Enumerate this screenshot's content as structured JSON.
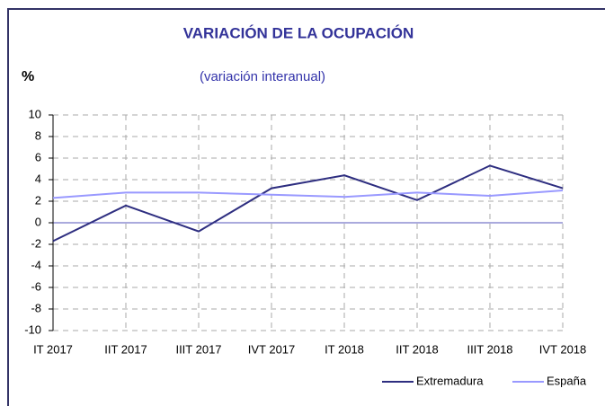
{
  "chart_data": {
    "type": "line",
    "title": "VARIACIÓN DE LA OCUPACIÓN",
    "subtitle": "(variación interanual)",
    "y_label": "%",
    "categories": [
      "IT 2017",
      "IIT 2017",
      "IIIT 2017",
      "IVT 2017",
      "IT 2018",
      "IIT 2018",
      "IIIT 2018",
      "IVT 2018"
    ],
    "series": [
      {
        "name": "Extremadura",
        "color": "#2e2e80",
        "values": [
          -1.7,
          1.6,
          -0.8,
          3.2,
          4.4,
          2.1,
          5.3,
          3.2
        ]
      },
      {
        "name": "España",
        "color": "#9999ff",
        "values": [
          2.3,
          2.8,
          2.8,
          2.6,
          2.4,
          2.8,
          2.5,
          3.0
        ]
      }
    ],
    "ylim": [
      -10,
      10
    ],
    "yticks": [
      -10,
      -8,
      -6,
      -4,
      -2,
      0,
      2,
      4,
      6,
      8,
      10
    ],
    "grid": true,
    "legend": "bottom-right"
  }
}
